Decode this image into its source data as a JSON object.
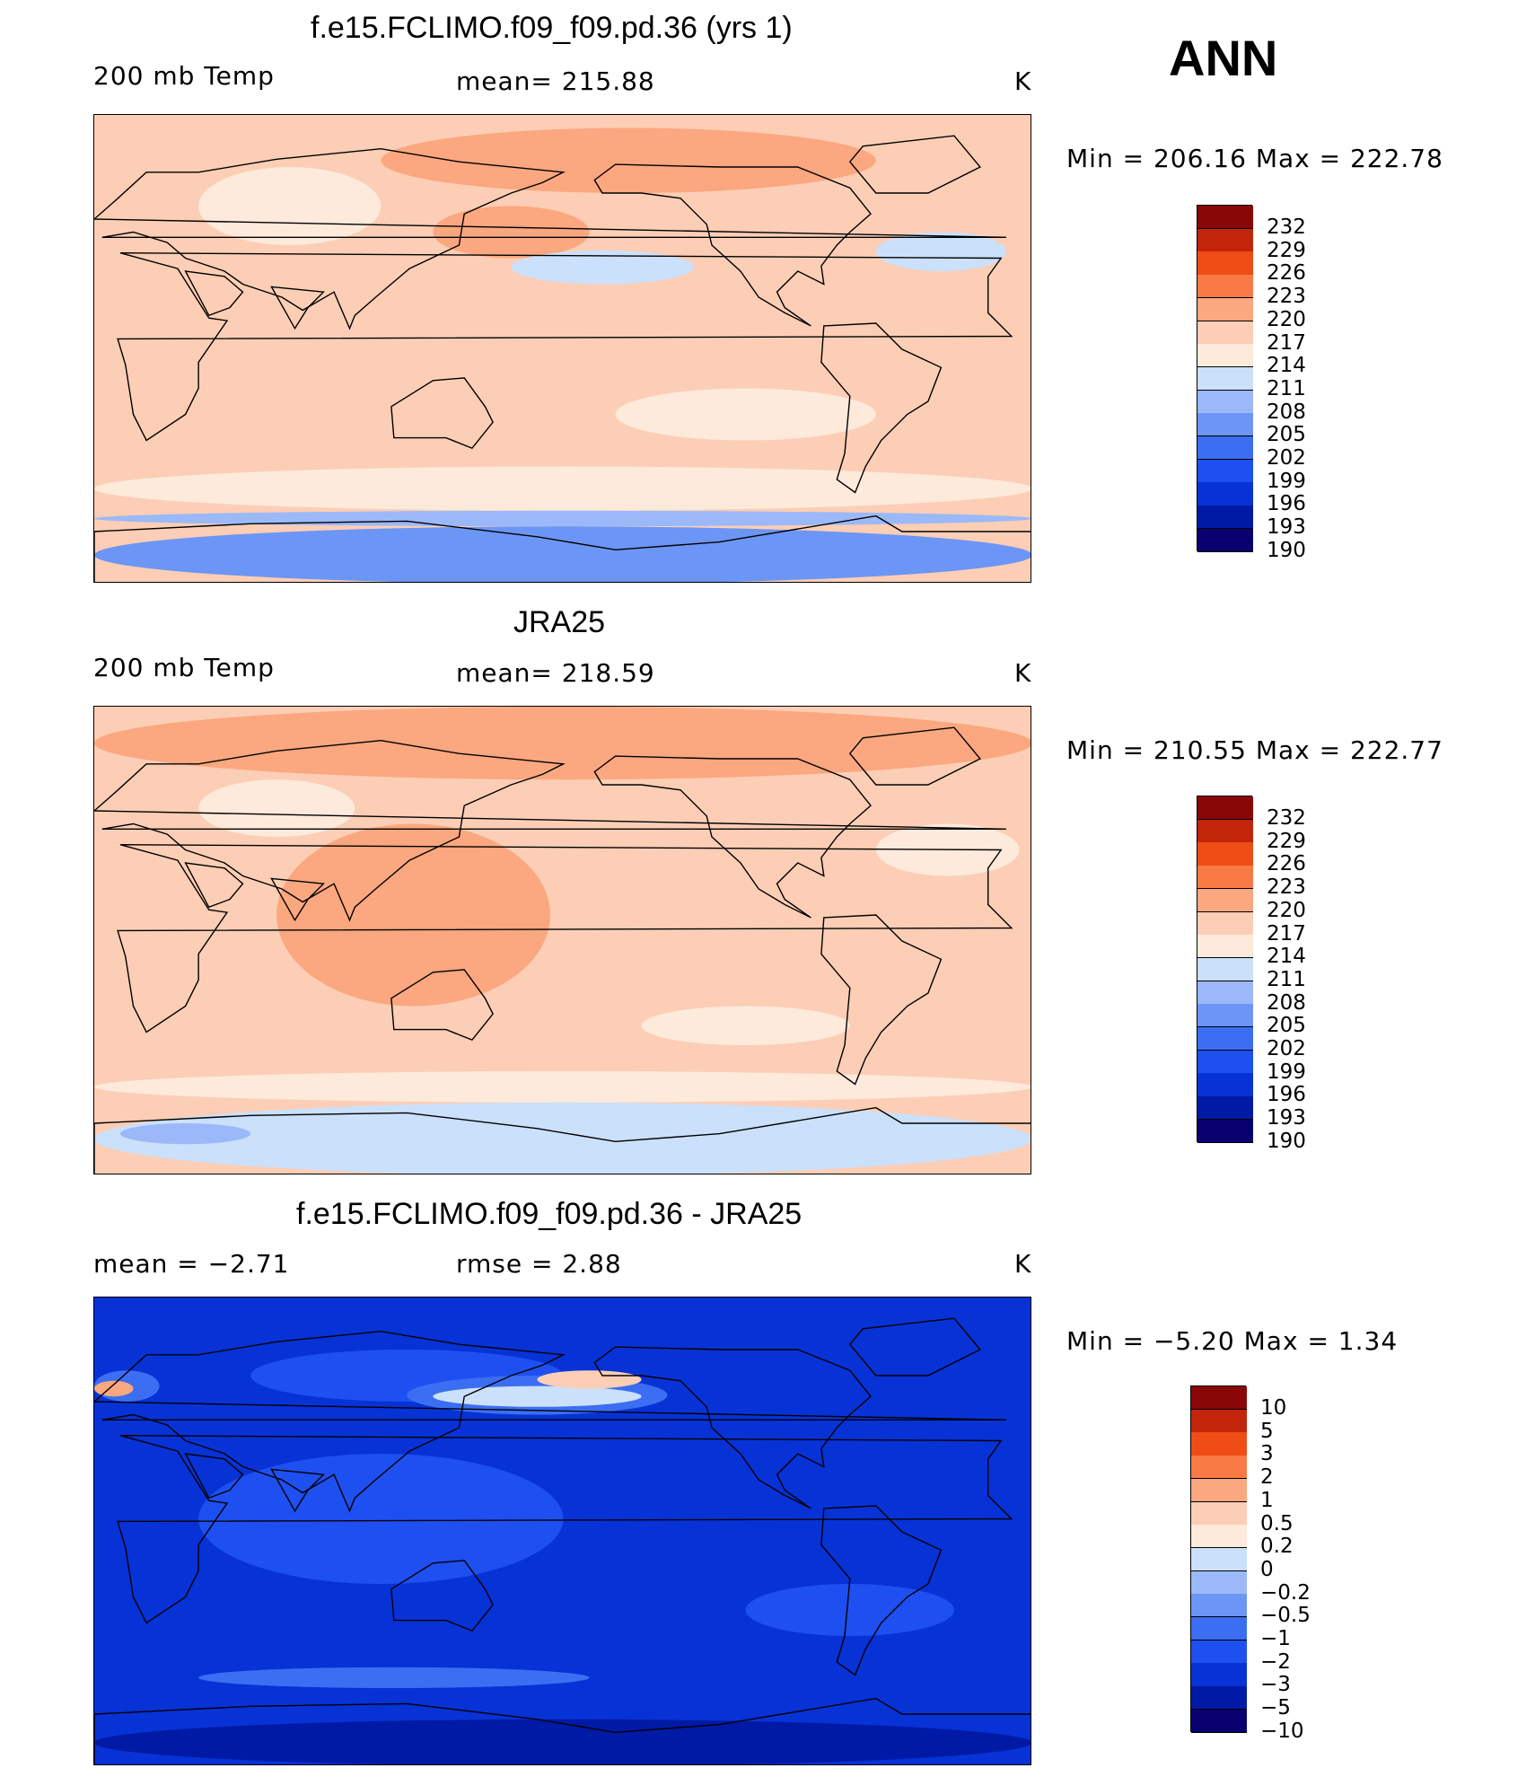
{
  "season": "ANN",
  "colors": {
    "abs_scale": [
      "#08006e",
      "#001aa5",
      "#0732d6",
      "#1e4ff0",
      "#3b6ef2",
      "#6c96f5",
      "#9bb9f8",
      "#cbe0fb",
      "#fdeadb",
      "#fcceb5",
      "#fba77f",
      "#f97a45",
      "#ef4d15",
      "#c3250b",
      "#8a0707"
    ],
    "diff_scale": [
      "#08006e",
      "#001aa5",
      "#0732d6",
      "#1e4ff0",
      "#3b6ef2",
      "#6c96f5",
      "#9bb9f8",
      "#cbe0fb",
      "#fdeadb",
      "#fcceb5",
      "#fba77f",
      "#f97a45",
      "#ef4d15",
      "#c3250b",
      "#8a0707"
    ]
  },
  "chart_data": [
    {
      "type": "heatmap",
      "title": "f.e15.FCLIMO.f09_f09.pd.36 (yrs 1)",
      "left_label": "200 mb Temp",
      "center_label": "mean= 215.88",
      "units": "K",
      "min_max": "Min = 206.16 Max = 222.78",
      "levels": [
        "232",
        "229",
        "226",
        "223",
        "220",
        "217",
        "214",
        "211",
        "208",
        "205",
        "202",
        "199",
        "196",
        "193",
        "190"
      ],
      "base_level": "217",
      "regions": [
        {
          "level": "220",
          "lat": [
            60,
            85
          ],
          "lon": [
            110,
            300
          ]
        },
        {
          "level": "220",
          "lat": [
            35,
            55
          ],
          "lon": [
            130,
            190
          ]
        },
        {
          "level": "217",
          "lat": [
            -15,
            40
          ],
          "lon": [
            30,
            160
          ]
        },
        {
          "level": "214",
          "lat": [
            40,
            70
          ],
          "lon": [
            40,
            110
          ]
        },
        {
          "level": "214",
          "lat": [
            -35,
            -15
          ],
          "lon": [
            200,
            300
          ]
        },
        {
          "level": "211",
          "lat": [
            30,
            45
          ],
          "lon": [
            300,
            350
          ]
        },
        {
          "level": "211",
          "lat": [
            25,
            38
          ],
          "lon": [
            160,
            230
          ]
        },
        {
          "level": "214",
          "lat": [
            -62,
            -45
          ],
          "lon": [
            0,
            360
          ]
        },
        {
          "level": "208",
          "lat": [
            -68,
            -62
          ],
          "lon": [
            0,
            360
          ]
        },
        {
          "level": "205",
          "lat": [
            -90,
            -68
          ],
          "lon": [
            0,
            360
          ]
        }
      ]
    },
    {
      "type": "heatmap",
      "title": "JRA25",
      "left_label": "200 mb Temp",
      "center_label": "mean= 218.59",
      "units": "K",
      "min_max": "Min = 210.55 Max = 222.77",
      "levels": [
        "232",
        "229",
        "226",
        "223",
        "220",
        "217",
        "214",
        "211",
        "208",
        "205",
        "202",
        "199",
        "196",
        "193",
        "190"
      ],
      "base_level": "217",
      "regions": [
        {
          "level": "220",
          "lat": [
            62,
            90
          ],
          "lon": [
            0,
            360
          ]
        },
        {
          "level": "220",
          "lat": [
            -25,
            45
          ],
          "lon": [
            70,
            175
          ]
        },
        {
          "level": "214",
          "lat": [
            40,
            62
          ],
          "lon": [
            40,
            100
          ]
        },
        {
          "level": "214",
          "lat": [
            25,
            45
          ],
          "lon": [
            300,
            355
          ]
        },
        {
          "level": "214",
          "lat": [
            -40,
            -25
          ],
          "lon": [
            210,
            290
          ]
        },
        {
          "level": "214",
          "lat": [
            -62,
            -50
          ],
          "lon": [
            0,
            360
          ]
        },
        {
          "level": "211",
          "lat": [
            -90,
            -62
          ],
          "lon": [
            0,
            360
          ]
        },
        {
          "level": "208",
          "lat": [
            -78,
            -70
          ],
          "lon": [
            10,
            60
          ]
        }
      ]
    },
    {
      "type": "heatmap",
      "title": "f.e15.FCLIMO.f09_f09.pd.36 - JRA25",
      "left_label": "mean =   −2.71",
      "center_label": "rmse =    2.88",
      "units": "K",
      "min_max": "Min =   −5.20 Max =    1.34",
      "levels": [
        "10",
        "5",
        "3",
        "2",
        "1",
        "0.5",
        "0.2",
        "0",
        "−0.2",
        "−0.5",
        "−1",
        "−2",
        "−3",
        "−5",
        "−10"
      ],
      "base_level": "−3",
      "regions": [
        {
          "level": "−2",
          "lat": [
            -20,
            30
          ],
          "lon": [
            40,
            180
          ]
        },
        {
          "level": "−2",
          "lat": [
            50,
            70
          ],
          "lon": [
            60,
            180
          ]
        },
        {
          "level": "−1",
          "lat": [
            45,
            60
          ],
          "lon": [
            120,
            220
          ]
        },
        {
          "level": "0",
          "lat": [
            48,
            56
          ],
          "lon": [
            130,
            210
          ]
        },
        {
          "level": "0.5",
          "lat": [
            55,
            62
          ],
          "lon": [
            170,
            210
          ]
        },
        {
          "level": "−1",
          "lat": [
            50,
            62
          ],
          "lon": [
            0,
            25
          ]
        },
        {
          "level": "1",
          "lat": [
            52,
            58
          ],
          "lon": [
            0,
            15
          ]
        },
        {
          "level": "−1",
          "lat": [
            -60,
            -52
          ],
          "lon": [
            40,
            190
          ]
        },
        {
          "level": "−2",
          "lat": [
            -40,
            -20
          ],
          "lon": [
            250,
            330
          ]
        },
        {
          "level": "−5",
          "lat": [
            -90,
            -72
          ],
          "lon": [
            0,
            360
          ]
        }
      ]
    }
  ]
}
